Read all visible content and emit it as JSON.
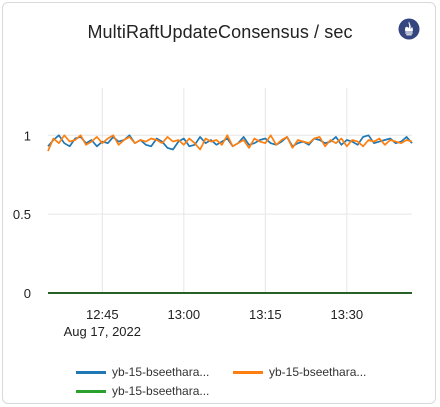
{
  "title": "MultiRaftUpdateConsensus / sec",
  "icon": "prometheus-icon",
  "colors": {
    "series1": "#1f77b4",
    "series2": "#ff7f0e",
    "series3": "#2ca02c",
    "grid": "#e6e6e6",
    "axis": "#222222"
  },
  "chart_data": {
    "type": "line",
    "title": "MultiRaftUpdateConsensus / sec",
    "xlabel": "",
    "ylabel": "",
    "x_start": "12:35",
    "x_end": "13:42",
    "x_step_minutes": 1,
    "xlim": [
      "12:35",
      "13:42"
    ],
    "ylim": [
      0,
      1.3
    ],
    "y_ticks": [
      {
        "value": 0,
        "label": "0"
      },
      {
        "value": 0.5,
        "label": "0.5"
      },
      {
        "value": 1,
        "label": "1"
      }
    ],
    "x_ticks": [
      {
        "time": "12:45",
        "label": "12:45",
        "sublabel": "Aug 17, 2022"
      },
      {
        "time": "13:00",
        "label": "13:00",
        "sublabel": ""
      },
      {
        "time": "13:15",
        "label": "13:15",
        "sublabel": ""
      },
      {
        "time": "13:30",
        "label": "13:30",
        "sublabel": ""
      }
    ],
    "grid": true,
    "legend_position": "bottom",
    "series": [
      {
        "name": "yb-15-bseethara...",
        "color": "#1f77b4",
        "values": [
          0.93,
          0.97,
          1.0,
          0.95,
          0.93,
          0.98,
          0.99,
          0.95,
          0.97,
          0.93,
          0.96,
          0.95,
          0.99,
          0.96,
          0.97,
          1.0,
          0.95,
          0.97,
          0.94,
          0.93,
          0.98,
          0.96,
          0.92,
          0.91,
          0.96,
          0.98,
          0.93,
          0.94,
          0.99,
          0.95,
          0.97,
          0.94,
          0.96,
          0.98,
          0.93,
          0.95,
          0.99,
          0.94,
          0.95,
          0.97,
          0.98,
          0.95,
          0.94,
          0.96,
          0.99,
          0.93,
          0.95,
          0.96,
          0.94,
          0.98,
          0.97,
          0.95,
          0.96,
          0.99,
          0.94,
          0.97,
          0.96,
          0.94,
          0.99,
          1.0,
          0.95,
          0.96,
          0.97,
          0.98,
          0.95,
          0.96,
          0.99,
          0.95
        ]
      },
      {
        "name": "yb-15-bseethara...",
        "color": "#ff7f0e",
        "values": [
          0.9,
          0.98,
          0.95,
          1.0,
          0.96,
          0.97,
          1.0,
          0.94,
          0.96,
          0.99,
          0.95,
          0.98,
          1.0,
          0.94,
          0.97,
          0.99,
          0.95,
          0.97,
          0.96,
          0.98,
          0.97,
          0.95,
          0.99,
          0.96,
          0.97,
          0.94,
          0.98,
          0.95,
          0.91,
          0.98,
          0.96,
          0.97,
          0.94,
          1.0,
          0.93,
          0.95,
          0.97,
          0.92,
          0.98,
          0.96,
          0.95,
          1.0,
          0.94,
          0.97,
          0.99,
          0.92,
          0.97,
          0.96,
          0.95,
          0.98,
          0.99,
          0.93,
          0.97,
          0.95,
          0.98,
          0.93,
          0.97,
          0.96,
          0.93,
          0.97,
          0.96,
          0.98,
          0.94,
          0.97,
          0.96,
          0.95,
          0.97,
          0.96
        ]
      },
      {
        "name": "yb-15-bseethara...",
        "color": "#2ca02c",
        "values": [
          0,
          0,
          0,
          0,
          0,
          0,
          0,
          0,
          0,
          0,
          0,
          0,
          0,
          0,
          0,
          0,
          0,
          0,
          0,
          0,
          0,
          0,
          0,
          0,
          0,
          0,
          0,
          0,
          0,
          0,
          0,
          0,
          0,
          0,
          0,
          0,
          0,
          0,
          0,
          0,
          0,
          0,
          0,
          0,
          0,
          0,
          0,
          0,
          0,
          0,
          0,
          0,
          0,
          0,
          0,
          0,
          0,
          0,
          0,
          0,
          0,
          0,
          0,
          0,
          0,
          0,
          0,
          0
        ]
      }
    ]
  },
  "legend": [
    {
      "label": "yb-15-bseethara...",
      "color": "#1f77b4"
    },
    {
      "label": "yb-15-bseethara...",
      "color": "#ff7f0e"
    },
    {
      "label": "yb-15-bseethara...",
      "color": "#2ca02c"
    }
  ]
}
